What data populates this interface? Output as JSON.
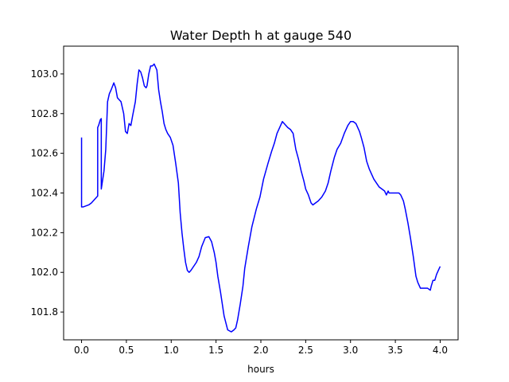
{
  "chart_data": {
    "type": "line",
    "title": "Water Depth h at gauge 540",
    "xlabel": "hours",
    "ylabel": "",
    "xlim": [
      -0.2,
      4.2
    ],
    "ylim": [
      101.66,
      103.14
    ],
    "xticks": [
      0.0,
      0.5,
      1.0,
      1.5,
      2.0,
      2.5,
      3.0,
      3.5,
      4.0
    ],
    "xtick_labels": [
      "0.0",
      "0.5",
      "1.0",
      "1.5",
      "2.0",
      "2.5",
      "3.0",
      "3.5",
      "4.0"
    ],
    "yticks": [
      101.8,
      102.0,
      102.2,
      102.4,
      102.6,
      102.8,
      103.0
    ],
    "ytick_labels": [
      "101.8",
      "102.0",
      "102.2",
      "102.4",
      "102.6",
      "102.8",
      "103.0"
    ],
    "grid": false,
    "legend": "none",
    "series": [
      {
        "color": "#0000ff",
        "x": [
          0.0,
          0.0,
          0.0,
          0.02,
          0.05,
          0.08,
          0.11,
          0.14,
          0.17,
          0.18,
          0.18,
          0.19,
          0.21,
          0.22,
          0.22,
          0.23,
          0.25,
          0.27,
          0.29,
          0.31,
          0.33,
          0.36,
          0.38,
          0.4,
          0.42,
          0.44,
          0.47,
          0.49,
          0.51,
          0.53,
          0.55,
          0.57,
          0.6,
          0.62,
          0.64,
          0.66,
          0.68,
          0.7,
          0.72,
          0.73,
          0.75,
          0.77,
          0.79,
          0.81,
          0.84,
          0.86,
          0.88,
          0.9,
          0.92,
          0.94,
          0.96,
          0.99,
          1.02,
          1.05,
          1.08,
          1.1,
          1.12,
          1.14,
          1.16,
          1.18,
          1.2,
          1.22,
          1.25,
          1.28,
          1.31,
          1.34,
          1.38,
          1.42,
          1.45,
          1.48,
          1.5,
          1.52,
          1.55,
          1.59,
          1.63,
          1.67,
          1.7,
          1.72,
          1.74,
          1.77,
          1.8,
          1.82,
          1.86,
          1.9,
          1.95,
          1.99,
          2.03,
          2.08,
          2.12,
          2.15,
          2.18,
          2.19,
          2.21,
          2.24,
          2.27,
          2.3,
          2.33,
          2.36,
          2.39,
          2.42,
          2.45,
          2.48,
          2.5,
          2.53,
          2.56,
          2.58,
          2.61,
          2.64,
          2.66,
          2.68,
          2.72,
          2.75,
          2.78,
          2.82,
          2.85,
          2.89,
          2.93,
          2.97,
          3.0,
          3.03,
          3.06,
          3.08,
          3.1,
          3.12,
          3.15,
          3.18,
          3.21,
          3.24,
          3.26,
          3.29,
          3.32,
          3.35,
          3.38,
          3.4,
          3.42,
          3.43,
          3.45,
          3.48,
          3.51,
          3.54,
          3.56,
          3.59,
          3.61,
          3.64,
          3.67,
          3.7,
          3.73,
          3.75,
          3.78,
          3.82,
          3.86,
          3.89,
          3.9,
          3.92,
          3.94,
          3.96,
          3.98,
          4.0
        ],
        "y": [
          102.68,
          102.33,
          102.33,
          102.33,
          102.335,
          102.34,
          102.35,
          102.365,
          102.38,
          102.385,
          102.73,
          102.74,
          102.77,
          102.775,
          102.42,
          102.45,
          102.51,
          102.62,
          102.86,
          102.9,
          102.92,
          102.955,
          102.93,
          102.88,
          102.87,
          102.86,
          102.8,
          102.71,
          102.7,
          102.75,
          102.74,
          102.79,
          102.86,
          102.95,
          103.02,
          103.01,
          102.98,
          102.94,
          102.93,
          102.94,
          103.0,
          103.04,
          103.04,
          103.05,
          103.02,
          102.92,
          102.86,
          102.81,
          102.75,
          102.72,
          102.7,
          102.68,
          102.64,
          102.55,
          102.45,
          102.3,
          102.2,
          102.12,
          102.05,
          102.01,
          102.0,
          102.01,
          102.03,
          102.05,
          102.08,
          102.13,
          102.175,
          102.18,
          102.155,
          102.1,
          102.05,
          101.98,
          101.9,
          101.78,
          101.71,
          101.7,
          101.71,
          101.72,
          101.76,
          101.84,
          101.93,
          102.02,
          102.13,
          102.23,
          102.32,
          102.38,
          102.47,
          102.55,
          102.61,
          102.65,
          102.7,
          102.71,
          102.73,
          102.76,
          102.745,
          102.73,
          102.72,
          102.7,
          102.62,
          102.57,
          102.51,
          102.46,
          102.42,
          102.39,
          102.35,
          102.34,
          102.35,
          102.36,
          102.37,
          102.38,
          102.41,
          102.45,
          102.51,
          102.58,
          102.62,
          102.65,
          102.7,
          102.74,
          102.76,
          102.76,
          102.75,
          102.73,
          102.71,
          102.68,
          102.63,
          102.56,
          102.52,
          102.49,
          102.47,
          102.45,
          102.43,
          102.42,
          102.41,
          102.39,
          102.41,
          102.4,
          102.4,
          102.4,
          102.4,
          102.4,
          102.39,
          102.36,
          102.32,
          102.25,
          102.17,
          102.08,
          101.98,
          101.95,
          101.92,
          101.92,
          101.92,
          101.91,
          101.93,
          101.96,
          101.96,
          101.99,
          102.01,
          102.03
        ]
      }
    ]
  }
}
